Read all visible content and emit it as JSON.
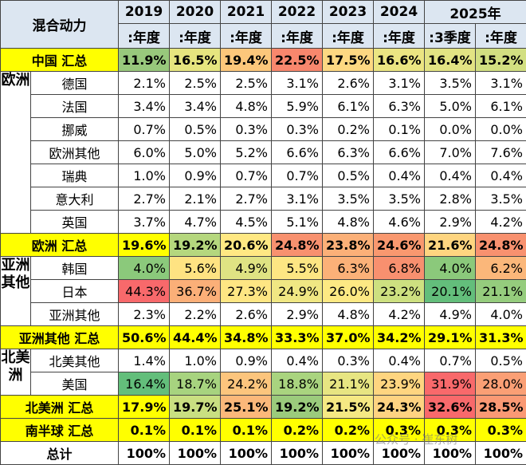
{
  "header": {
    "corner": "混合动力",
    "years": [
      "2019",
      "2020",
      "2021",
      "2022",
      "2023",
      "2024",
      "2025年"
    ],
    "periods": [
      ":年度",
      ":年度",
      ":年度",
      ":年度",
      ":年度",
      ":年度",
      ":3季度",
      ":年度"
    ]
  },
  "table": {
    "blocks": [
      {
        "total": {
          "label": "中国 汇总",
          "fill": "#ffff00",
          "values": [
            "11.9%",
            "16.5%",
            "19.4%",
            "22.5%",
            "17.5%",
            "16.6%",
            "16.4%",
            "15.2%"
          ],
          "fills": [
            "#98c87c",
            "#e6e57f",
            "#fcc77b",
            "#f8876d",
            "#fdd882",
            "#ebe582",
            "#e2e383",
            "#d2df81"
          ]
        }
      },
      {
        "group": "欧洲",
        "rows": [
          {
            "label": "德国",
            "values": [
              "2.1%",
              "2.5%",
              "2.5%",
              "3.1%",
              "2.6%",
              "3.1%",
              "3.5%",
              "3.1%"
            ]
          },
          {
            "label": "法国",
            "values": [
              "3.4%",
              "3.4%",
              "4.8%",
              "5.9%",
              "6.1%",
              "6.3%",
              "5.0%",
              "6.1%"
            ]
          },
          {
            "label": "挪威",
            "values": [
              "0.7%",
              "0.5%",
              "0.3%",
              "0.3%",
              "0.2%",
              "0.1%",
              "0.0%",
              "0.0%"
            ]
          },
          {
            "label": "欧洲其他",
            "values": [
              "6.0%",
              "5.0%",
              "5.2%",
              "6.6%",
              "6.3%",
              "6.6%",
              "7.0%",
              "7.6%"
            ]
          },
          {
            "label": "瑞典",
            "values": [
              "1.0%",
              "0.9%",
              "0.7%",
              "0.7%",
              "0.5%",
              "0.4%",
              "0.4%",
              "0.4%"
            ]
          },
          {
            "label": "意大利",
            "values": [
              "2.7%",
              "2.1%",
              "2.7%",
              "3.1%",
              "3.5%",
              "3.5%",
              "2.8%",
              "3.5%"
            ]
          },
          {
            "label": "英国",
            "values": [
              "3.7%",
              "4.7%",
              "4.5%",
              "5.1%",
              "4.8%",
              "4.6%",
              "2.9%",
              "4.2%"
            ]
          }
        ],
        "total": {
          "label": "欧洲 汇总",
          "fill": "#ffff00",
          "values": [
            "19.6%",
            "19.2%",
            "20.6%",
            "24.8%",
            "23.8%",
            "24.6%",
            "21.6%",
            "24.8%"
          ],
          "fills": [
            "#ffff00",
            "#b5d77e",
            "#ffe883",
            "#f8916f",
            "#fbb078",
            "#f9986f",
            "#fed580",
            "#f8916f"
          ]
        }
      },
      {
        "group": "亚洲其他",
        "rows": [
          {
            "label": "韩国",
            "values": [
              "4.0%",
              "5.6%",
              "4.9%",
              "5.5%",
              "6.3%",
              "6.8%",
              "4.0%",
              "6.2%"
            ],
            "fills": [
              "#8bc97b",
              "#fee382",
              "#dfe383",
              "#fde683",
              "#fbb178",
              "#f8906f",
              "#8bc97b",
              "#fbb77a"
            ]
          },
          {
            "label": "日本",
            "values": [
              "44.3%",
              "36.7%",
              "27.3%",
              "24.9%",
              "26.0%",
              "23.2%",
              "20.1%",
              "21.1%"
            ],
            "fills": [
              "#f8696b",
              "#fbaf78",
              "#fee683",
              "#f0e783",
              "#fde983",
              "#cde080",
              "#63be7b",
              "#95cc7d"
            ]
          },
          {
            "label": "亚洲其他",
            "values": [
              "2.3%",
              "2.2%",
              "2.6%",
              "2.9%",
              "4.8%",
              "4.2%",
              "4.9%",
              "4.0%"
            ]
          }
        ],
        "total": {
          "label": "亚洲其他 汇总",
          "fill": "#ffff00",
          "values": [
            "50.6%",
            "44.4%",
            "34.8%",
            "33.3%",
            "37.0%",
            "34.2%",
            "29.1%",
            "31.3%"
          ]
        }
      },
      {
        "group": "北美洲",
        "rows": [
          {
            "label": "北美其他",
            "values": [
              "1.4%",
              "1.0%",
              "0.9%",
              "0.4%",
              "0.3%",
              "0.4%",
              "0.7%",
              "0.5%"
            ]
          },
          {
            "label": "美国",
            "values": [
              "16.4%",
              "18.7%",
              "24.2%",
              "18.8%",
              "21.1%",
              "23.9%",
              "31.9%",
              "28.0%"
            ],
            "fills": [
              "#63be7b",
              "#a7d37f",
              "#fcc57d",
              "#a9d47f",
              "#e7e582",
              "#fed580",
              "#f8696b",
              "#fa9f75"
            ]
          }
        ],
        "total": {
          "label": "北美洲 汇总",
          "fill": "#ffff00",
          "values": [
            "17.9%",
            "19.7%",
            "25.1%",
            "19.2%",
            "21.5%",
            "24.3%",
            "32.6%",
            "28.5%"
          ],
          "fills": [
            "#ffff00",
            "#c9df81",
            "#fbb87a",
            "#9bcb7c",
            "#f5e983",
            "#fed381",
            "#f8696b",
            "#fa9974"
          ]
        }
      },
      {
        "total": {
          "label": "南半球 汇总",
          "fill": "#ffff00",
          "values": [
            "0.1%",
            "0.1%",
            "0.1%",
            "0.2%",
            "0.2%",
            "0.3%",
            "0.3%",
            "0.3%"
          ]
        }
      },
      {
        "total": {
          "label": "总计",
          "fill": "#ffffff",
          "values": [
            "100%",
            "100%",
            "100%",
            "100%",
            "100%",
            "100%",
            "100%",
            "100%"
          ]
        }
      }
    ]
  },
  "watermark": "公众号 · 崔东树"
}
